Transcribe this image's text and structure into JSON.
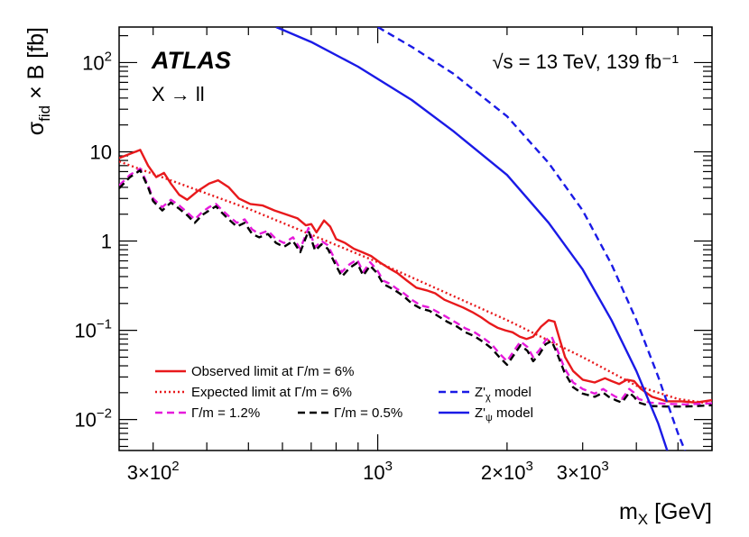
{
  "chart_data": {
    "type": "line",
    "experiment": "ATLAS",
    "process": "X → ll",
    "energy_label": "√s = 13 TeV, 139 fb⁻¹",
    "xlabel": {
      "symbol": "m",
      "sub": "X",
      "unit": " [GeV]"
    },
    "ylabel": {
      "pre": "σ",
      "sub": "fid",
      "post": " × B [fb]"
    },
    "xscale": "log",
    "yscale": "log",
    "xlim": [
      250,
      6000
    ],
    "ylim": [
      0.0045,
      250
    ],
    "x_ticks": [
      {
        "value": 300,
        "mant": "3×10",
        "exp": "2"
      },
      {
        "value": 1000,
        "mant": "10",
        "exp": "3"
      },
      {
        "value": 2000,
        "mant": "2×10",
        "exp": "3"
      },
      {
        "value": 3000,
        "mant": "3×10",
        "exp": "3"
      }
    ],
    "y_ticks": [
      {
        "value": 0.01,
        "mant": "10",
        "exp": "−2"
      },
      {
        "value": 0.1,
        "mant": "10",
        "exp": "−1"
      },
      {
        "value": 1,
        "mant": "1",
        "exp": ""
      },
      {
        "value": 10,
        "mant": "10",
        "exp": ""
      },
      {
        "value": 100,
        "mant": "10",
        "exp": "2"
      }
    ],
    "series": [
      {
        "name": "Observed limit at Γ/m = 6%",
        "color": "#e8191c",
        "style": "solid",
        "points": [
          [
            250,
            8.5
          ],
          [
            265,
            9.5
          ],
          [
            280,
            10.5
          ],
          [
            292,
            7.0
          ],
          [
            305,
            5.2
          ],
          [
            318,
            5.8
          ],
          [
            330,
            4.4
          ],
          [
            345,
            3.3
          ],
          [
            360,
            2.9
          ],
          [
            380,
            3.6
          ],
          [
            405,
            4.4
          ],
          [
            425,
            4.8
          ],
          [
            450,
            4.0
          ],
          [
            475,
            3.0
          ],
          [
            505,
            2.6
          ],
          [
            540,
            2.5
          ],
          [
            575,
            2.2
          ],
          [
            610,
            2.0
          ],
          [
            650,
            1.8
          ],
          [
            680,
            1.5
          ],
          [
            700,
            1.55
          ],
          [
            720,
            1.25
          ],
          [
            750,
            1.7
          ],
          [
            775,
            1.45
          ],
          [
            800,
            1.05
          ],
          [
            840,
            0.95
          ],
          [
            880,
            0.82
          ],
          [
            920,
            0.75
          ],
          [
            965,
            0.68
          ],
          [
            1010,
            0.58
          ],
          [
            1060,
            0.5
          ],
          [
            1110,
            0.44
          ],
          [
            1170,
            0.36
          ],
          [
            1230,
            0.3
          ],
          [
            1300,
            0.28
          ],
          [
            1360,
            0.26
          ],
          [
            1430,
            0.22
          ],
          [
            1500,
            0.2
          ],
          [
            1580,
            0.18
          ],
          [
            1660,
            0.16
          ],
          [
            1740,
            0.14
          ],
          [
            1820,
            0.12
          ],
          [
            1900,
            0.107
          ],
          [
            1980,
            0.1
          ],
          [
            2060,
            0.095
          ],
          [
            2140,
            0.085
          ],
          [
            2220,
            0.08
          ],
          [
            2300,
            0.085
          ],
          [
            2400,
            0.11
          ],
          [
            2500,
            0.13
          ],
          [
            2580,
            0.125
          ],
          [
            2650,
            0.08
          ],
          [
            2730,
            0.05
          ],
          [
            2850,
            0.035
          ],
          [
            3000,
            0.028
          ],
          [
            3200,
            0.026
          ],
          [
            3380,
            0.029
          ],
          [
            3500,
            0.027
          ],
          [
            3650,
            0.025
          ],
          [
            3800,
            0.028
          ],
          [
            3950,
            0.027
          ],
          [
            4100,
            0.022
          ],
          [
            4350,
            0.018
          ],
          [
            4700,
            0.016
          ],
          [
            5100,
            0.016
          ],
          [
            5500,
            0.0155
          ],
          [
            6000,
            0.0165
          ]
        ]
      },
      {
        "name": "Expected limit at Γ/m = 6%",
        "color": "#e8191c",
        "style": "dotted",
        "points": [
          [
            250,
            7.8
          ],
          [
            500,
            2.3
          ],
          [
            1000,
            0.58
          ],
          [
            2000,
            0.13
          ],
          [
            3000,
            0.05
          ],
          [
            4000,
            0.024
          ],
          [
            5000,
            0.017
          ],
          [
            6000,
            0.015
          ]
        ]
      },
      {
        "name": "Γ/m = 1.2%",
        "color": "#e61adb",
        "style": "dashed",
        "points": [
          [
            250,
            4.2
          ],
          [
            265,
            5.5
          ],
          [
            280,
            6.5
          ],
          [
            292,
            4.2
          ],
          [
            300,
            3.0
          ],
          [
            315,
            2.4
          ],
          [
            330,
            2.9
          ],
          [
            345,
            2.5
          ],
          [
            360,
            2.1
          ],
          [
            375,
            1.75
          ],
          [
            390,
            2.1
          ],
          [
            405,
            2.4
          ],
          [
            420,
            2.6
          ],
          [
            435,
            2.2
          ],
          [
            450,
            1.9
          ],
          [
            470,
            1.6
          ],
          [
            490,
            1.75
          ],
          [
            510,
            1.35
          ],
          [
            530,
            1.2
          ],
          [
            555,
            1.3
          ],
          [
            580,
            1.05
          ],
          [
            605,
            0.95
          ],
          [
            635,
            1.1
          ],
          [
            660,
            0.82
          ],
          [
            690,
            1.4
          ],
          [
            715,
            0.85
          ],
          [
            740,
            1.0
          ],
          [
            765,
            0.9
          ],
          [
            795,
            0.62
          ],
          [
            825,
            0.45
          ],
          [
            860,
            0.55
          ],
          [
            895,
            0.62
          ],
          [
            925,
            0.45
          ],
          [
            960,
            0.58
          ],
          [
            995,
            0.48
          ],
          [
            1030,
            0.36
          ],
          [
            1070,
            0.33
          ],
          [
            1110,
            0.29
          ],
          [
            1150,
            0.26
          ],
          [
            1200,
            0.22
          ],
          [
            1260,
            0.19
          ],
          [
            1320,
            0.18
          ],
          [
            1380,
            0.16
          ],
          [
            1450,
            0.14
          ],
          [
            1530,
            0.12
          ],
          [
            1600,
            0.105
          ],
          [
            1680,
            0.095
          ],
          [
            1760,
            0.082
          ],
          [
            1840,
            0.07
          ],
          [
            1920,
            0.055
          ],
          [
            2000,
            0.045
          ],
          [
            2080,
            0.06
          ],
          [
            2150,
            0.075
          ],
          [
            2230,
            0.065
          ],
          [
            2300,
            0.05
          ],
          [
            2380,
            0.06
          ],
          [
            2460,
            0.078
          ],
          [
            2540,
            0.085
          ],
          [
            2620,
            0.06
          ],
          [
            2720,
            0.038
          ],
          [
            2850,
            0.026
          ],
          [
            3000,
            0.022
          ],
          [
            3200,
            0.0195
          ],
          [
            3350,
            0.022
          ],
          [
            3450,
            0.02
          ],
          [
            3580,
            0.018
          ],
          [
            3700,
            0.017
          ],
          [
            3850,
            0.022
          ],
          [
            3950,
            0.02
          ],
          [
            4050,
            0.017
          ],
          [
            4300,
            0.0155
          ],
          [
            4700,
            0.015
          ],
          [
            5200,
            0.0148
          ],
          [
            5600,
            0.015
          ],
          [
            6000,
            0.0152
          ]
        ]
      },
      {
        "name": "Γ/m = 0.5%",
        "color": "#000000",
        "style": "dashed",
        "points": [
          [
            250,
            3.9
          ],
          [
            265,
            5.2
          ],
          [
            280,
            6.2
          ],
          [
            292,
            4.0
          ],
          [
            300,
            2.8
          ],
          [
            315,
            2.2
          ],
          [
            330,
            2.7
          ],
          [
            345,
            2.3
          ],
          [
            360,
            1.95
          ],
          [
            375,
            1.6
          ],
          [
            390,
            1.95
          ],
          [
            405,
            2.2
          ],
          [
            420,
            2.45
          ],
          [
            435,
            2.05
          ],
          [
            450,
            1.75
          ],
          [
            470,
            1.45
          ],
          [
            490,
            1.6
          ],
          [
            510,
            1.2
          ],
          [
            530,
            1.1
          ],
          [
            555,
            1.2
          ],
          [
            580,
            0.95
          ],
          [
            605,
            0.86
          ],
          [
            635,
            1.0
          ],
          [
            660,
            0.75
          ],
          [
            690,
            1.3
          ],
          [
            715,
            0.78
          ],
          [
            740,
            0.92
          ],
          [
            765,
            0.82
          ],
          [
            795,
            0.56
          ],
          [
            825,
            0.4
          ],
          [
            860,
            0.5
          ],
          [
            895,
            0.57
          ],
          [
            925,
            0.41
          ],
          [
            960,
            0.53
          ],
          [
            995,
            0.44
          ],
          [
            1030,
            0.33
          ],
          [
            1070,
            0.3
          ],
          [
            1110,
            0.27
          ],
          [
            1150,
            0.24
          ],
          [
            1200,
            0.2
          ],
          [
            1260,
            0.175
          ],
          [
            1320,
            0.165
          ],
          [
            1380,
            0.145
          ],
          [
            1450,
            0.125
          ],
          [
            1530,
            0.11
          ],
          [
            1600,
            0.095
          ],
          [
            1680,
            0.086
          ],
          [
            1760,
            0.074
          ],
          [
            1840,
            0.063
          ],
          [
            1920,
            0.05
          ],
          [
            2000,
            0.041
          ],
          [
            2080,
            0.054
          ],
          [
            2150,
            0.068
          ],
          [
            2230,
            0.059
          ],
          [
            2300,
            0.045
          ],
          [
            2380,
            0.054
          ],
          [
            2460,
            0.07
          ],
          [
            2540,
            0.076
          ],
          [
            2620,
            0.054
          ],
          [
            2720,
            0.034
          ],
          [
            2850,
            0.023
          ],
          [
            3000,
            0.0195
          ],
          [
            3200,
            0.018
          ],
          [
            3350,
            0.02
          ],
          [
            3450,
            0.018
          ],
          [
            3580,
            0.0165
          ],
          [
            3700,
            0.0155
          ],
          [
            3850,
            0.02
          ],
          [
            3950,
            0.018
          ],
          [
            4050,
            0.0155
          ],
          [
            4300,
            0.0142
          ],
          [
            4700,
            0.014
          ],
          [
            5200,
            0.014
          ],
          [
            5600,
            0.0142
          ],
          [
            6000,
            0.0145
          ]
        ]
      },
      {
        "name": "Z'χ model",
        "label": {
          "pre": "Z'",
          "sub": "χ",
          "post": " model"
        },
        "color": "#1a1ae6",
        "style": "dashed",
        "points": [
          [
            1000,
            250
          ],
          [
            1200,
            150
          ],
          [
            1500,
            75
          ],
          [
            2000,
            25
          ],
          [
            2500,
            7.5
          ],
          [
            3000,
            2.2
          ],
          [
            3500,
            0.55
          ],
          [
            4000,
            0.13
          ],
          [
            4500,
            0.03
          ],
          [
            5000,
            0.007
          ],
          [
            5300,
            0.0035
          ]
        ]
      },
      {
        "name": "Z'ψ model",
        "label": {
          "pre": "Z'",
          "sub": "ψ",
          "post": " model"
        },
        "color": "#1a1ae6",
        "style": "solid",
        "points": [
          [
            580,
            250
          ],
          [
            700,
            170
          ],
          [
            900,
            90
          ],
          [
            1200,
            38
          ],
          [
            1500,
            17
          ],
          [
            2000,
            5.5
          ],
          [
            2500,
            1.6
          ],
          [
            3000,
            0.48
          ],
          [
            3500,
            0.13
          ],
          [
            4000,
            0.035
          ],
          [
            4500,
            0.009
          ],
          [
            4800,
            0.0035
          ]
        ]
      }
    ],
    "legend": {
      "placement": "bottom-left",
      "columns": 2
    }
  }
}
